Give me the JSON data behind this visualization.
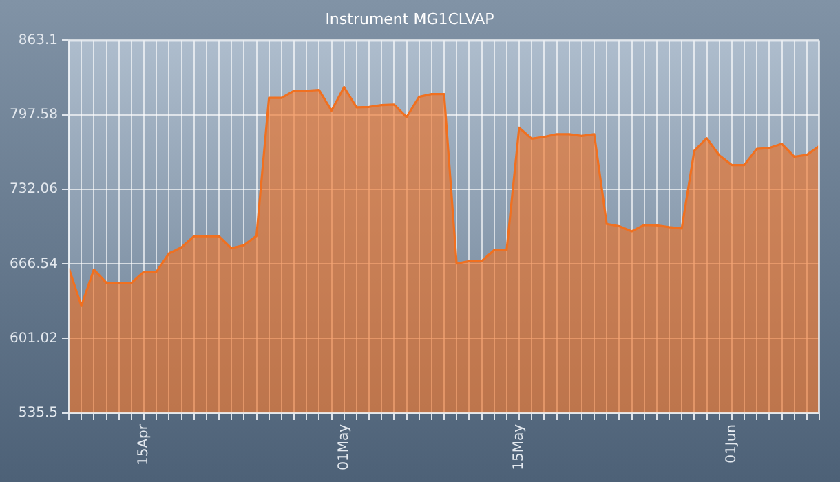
{
  "chart_data": {
    "type": "area",
    "title": "Instrument MG1CLVAP",
    "x": [
      "--04-09",
      "--04-10",
      "--04-11",
      "--04-12",
      "--04-13",
      "--04-14",
      "--04-15",
      "--04-16",
      "--04-17",
      "--04-18",
      "--04-19",
      "--04-20",
      "--04-21",
      "--04-22",
      "--04-23",
      "--04-24",
      "--04-25",
      "--04-26",
      "--04-27",
      "--04-28",
      "--04-29",
      "--04-30",
      "--05-01",
      "--05-02",
      "--05-03",
      "--05-04",
      "--05-05",
      "--05-06",
      "--05-07",
      "--05-08",
      "--05-09",
      "--05-10",
      "--05-11",
      "--05-12",
      "--05-13",
      "--05-14",
      "--05-15",
      "--05-16",
      "--05-17",
      "--05-18",
      "--05-19",
      "--05-20",
      "--05-21",
      "--05-22",
      "--05-23",
      "--05-24",
      "--05-25",
      "--05-26",
      "--05-27",
      "--05-28",
      "--05-29",
      "--05-30",
      "--05-31",
      "--06-01",
      "--06-02",
      "--06-03",
      "--06-04",
      "--06-05",
      "--06-06",
      "--06-07",
      "--06-08"
    ],
    "series": [
      {
        "color": "#f07020",
        "values": [
          662.9,
          629.7,
          661.7,
          650.0,
          650.0,
          650.0,
          659.7,
          659.7,
          675.8,
          681.1,
          690.8,
          690.8,
          690.8,
          680.3,
          683.1,
          691.2,
          812.5,
          812.5,
          818.6,
          818.6,
          819.4,
          801.2,
          821.9,
          804.1,
          804.5,
          806.1,
          806.5,
          795.6,
          813.4,
          815.8,
          815.8,
          666.9,
          669.0,
          669.0,
          678.7,
          678.7,
          786.3,
          776.6,
          778.2,
          780.6,
          780.6,
          779.0,
          780.6,
          701.7,
          699.7,
          695.2,
          700.9,
          700.5,
          698.9,
          697.7,
          766.0,
          777.0,
          762.0,
          753.5,
          753.5,
          767.7,
          768.5,
          772.1,
          760.8,
          762.4,
          770.1
        ]
      }
    ],
    "xlim": [
      "--04-09",
      "--06-08"
    ],
    "xticks": [
      {
        "value": "--04-09",
        "label": null
      },
      {
        "value": "--04-10",
        "label": null
      },
      {
        "value": "--04-11",
        "label": null
      },
      {
        "value": "--04-12",
        "label": null
      },
      {
        "value": "--04-13",
        "label": null
      },
      {
        "value": "--04-14",
        "label": null
      },
      {
        "value": "--04-15",
        "label": "15Apr"
      },
      {
        "value": "--04-16",
        "label": null
      },
      {
        "value": "--04-17",
        "label": null
      },
      {
        "value": "--04-18",
        "label": null
      },
      {
        "value": "--04-19",
        "label": null
      },
      {
        "value": "--04-20",
        "label": null
      },
      {
        "value": "--04-21",
        "label": null
      },
      {
        "value": "--04-22",
        "label": null
      },
      {
        "value": "--04-23",
        "label": null
      },
      {
        "value": "--04-24",
        "label": null
      },
      {
        "value": "--04-25",
        "label": null
      },
      {
        "value": "--04-26",
        "label": null
      },
      {
        "value": "--04-27",
        "label": null
      },
      {
        "value": "--04-28",
        "label": null
      },
      {
        "value": "--04-29",
        "label": null
      },
      {
        "value": "--04-30",
        "label": null
      },
      {
        "value": "--05-01",
        "label": "01May"
      },
      {
        "value": "--05-02",
        "label": null
      },
      {
        "value": "--05-03",
        "label": null
      },
      {
        "value": "--05-04",
        "label": null
      },
      {
        "value": "--05-05",
        "label": null
      },
      {
        "value": "--05-06",
        "label": null
      },
      {
        "value": "--05-07",
        "label": null
      },
      {
        "value": "--05-08",
        "label": null
      },
      {
        "value": "--05-09",
        "label": null
      },
      {
        "value": "--05-10",
        "label": null
      },
      {
        "value": "--05-11",
        "label": null
      },
      {
        "value": "--05-12",
        "label": null
      },
      {
        "value": "--05-13",
        "label": null
      },
      {
        "value": "--05-14",
        "label": null
      },
      {
        "value": "--05-15",
        "label": "15May"
      },
      {
        "value": "--05-16",
        "label": null
      },
      {
        "value": "--05-17",
        "label": null
      },
      {
        "value": "--05-18",
        "label": null
      },
      {
        "value": "--05-19",
        "label": null
      },
      {
        "value": "--05-20",
        "label": null
      },
      {
        "value": "--05-21",
        "label": null
      },
      {
        "value": "--05-22",
        "label": null
      },
      {
        "value": "--05-23",
        "label": null
      },
      {
        "value": "--05-24",
        "label": null
      },
      {
        "value": "--05-25",
        "label": null
      },
      {
        "value": "--05-26",
        "label": null
      },
      {
        "value": "--05-27",
        "label": null
      },
      {
        "value": "--05-28",
        "label": null
      },
      {
        "value": "--05-29",
        "label": null
      },
      {
        "value": "--05-30",
        "label": null
      },
      {
        "value": "--05-31",
        "label": null
      },
      {
        "value": "--06-01",
        "label": "01Jun"
      },
      {
        "value": "--06-02",
        "label": null
      },
      {
        "value": "--06-03",
        "label": null
      },
      {
        "value": "--06-04",
        "label": null
      },
      {
        "value": "--06-05",
        "label": null
      },
      {
        "value": "--06-06",
        "label": null
      },
      {
        "value": "--06-07",
        "label": null
      },
      {
        "value": "--06-08",
        "label": null
      }
    ],
    "ylim": [
      535.5,
      863.1
    ],
    "yticks": [
      535.5,
      601.02,
      666.54,
      732.06,
      797.58,
      863.1
    ],
    "grid": true,
    "line_style": "solid",
    "marker": "none"
  }
}
